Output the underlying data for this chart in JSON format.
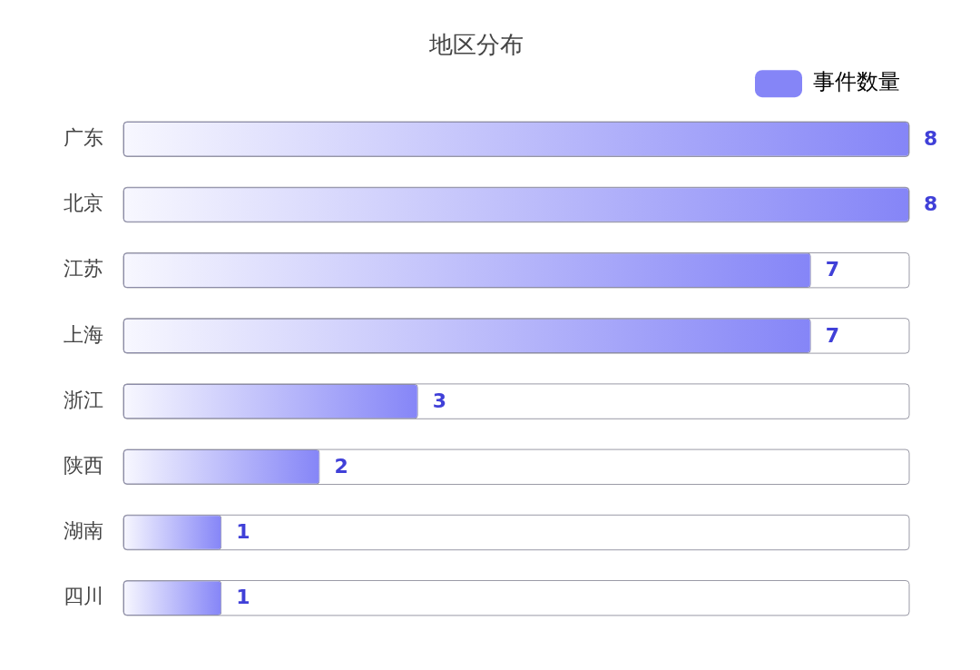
{
  "chart_data": {
    "type": "bar",
    "orientation": "horizontal",
    "title": "地区分布",
    "categories": [
      "广东",
      "北京",
      "江苏",
      "上海",
      "浙江",
      "陕西",
      "湖南",
      "四川"
    ],
    "series": [
      {
        "name": "事件数量",
        "color": "#8585f7",
        "values": [
          8,
          8,
          7,
          7,
          3,
          2,
          1,
          1
        ]
      }
    ],
    "xlim": [
      0,
      8
    ],
    "tick_labels": "y",
    "grid": false,
    "legend": "top right",
    "data_labels": true
  }
}
